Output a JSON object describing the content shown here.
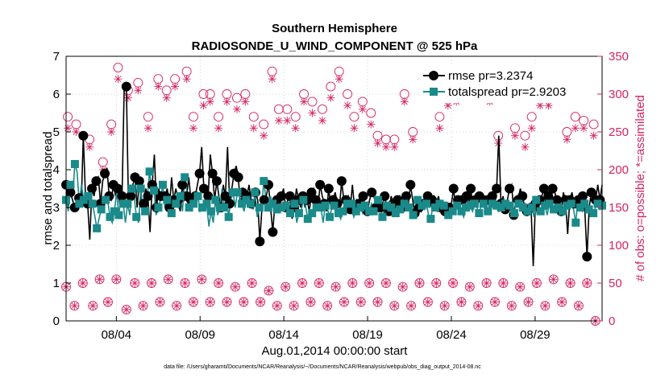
{
  "chart_data": {
    "type": "line",
    "title": "Southern Hemisphere",
    "subtitle": "RADIOSONDE_U_WIND_COMPONENT @ 525 hPa",
    "xlabel": "Aug.01,2014 00:00:00 start",
    "ylabel": "rmse and totalspread",
    "ylabel_right": "# of obs: o=possible; *=assimilated",
    "footer": "data file: /Users/gharamti/Documents/NCAR/Reanalysis/~/Documents/NCAR/Reanalysis/webpub/obs_diag_output_2014-08.nc",
    "xlim": [
      1,
      33
    ],
    "ylim": [
      0,
      7
    ],
    "ylim_right": [
      0,
      350
    ],
    "x_ticks": [
      4,
      9,
      14,
      19,
      24,
      29
    ],
    "x_tick_labels": [
      "08/04",
      "08/09",
      "08/14",
      "08/19",
      "08/24",
      "08/29"
    ],
    "y_ticks": [
      0,
      1,
      2,
      3,
      4,
      5,
      6,
      7
    ],
    "y_ticks_right": [
      0,
      50,
      100,
      150,
      200,
      250,
      300,
      350
    ],
    "grid": true,
    "legend_position": "top-right",
    "colors": {
      "rmse": "#000000",
      "totalspread": "#1a8a8a",
      "obs": "#d6235f"
    },
    "series": [
      {
        "name": "rmse pr=3.2374",
        "axis": "left",
        "marker": "circle",
        "values": [
          3.6,
          3.05,
          3.4,
          3.2,
          3.0,
          2.95,
          3.25,
          3.0,
          4.9,
          3.3,
          3.1,
          2.15,
          3.5,
          3.3,
          3.7,
          3.8,
          3.1,
          3.7,
          3.9,
          4.05,
          3.3,
          3.2,
          3.6,
          3.3,
          3.5,
          3.05,
          3.3,
          6.2,
          6.2,
          3.0,
          3.3,
          3.6,
          3.8,
          3.0,
          3.7,
          3.2,
          3.1,
          3.5,
          3.3,
          2.35,
          3.6,
          4.4,
          3.0,
          3.5,
          3.3,
          3.2,
          3.3,
          3.5,
          3.0,
          3.8,
          3.2,
          3.5,
          3.2,
          2.9,
          3.6,
          3.2,
          3.3,
          3.8,
          3.2,
          3.1,
          3.3,
          3.6,
          3.9,
          4.6,
          3.5,
          3.3,
          3.3,
          4.4,
          3.9,
          3.2,
          3.7,
          3.3,
          3.0,
          3.6,
          3.3,
          4.6,
          3.1,
          3.5,
          3.9,
          4.1,
          3.8,
          3.0,
          3.4,
          3.2,
          3.3,
          3.6,
          3.1,
          3.0,
          3.4,
          3.2,
          2.1,
          3.0,
          3.2,
          3.3,
          3.6,
          3.0,
          2.35,
          3.1,
          3.2,
          2.9,
          3.3,
          3.5,
          3.0,
          3.2,
          3.3,
          2.7,
          3.0,
          3.5,
          3.2,
          3.0,
          3.3,
          3.0,
          3.2,
          2.9,
          3.4,
          3.5,
          3.2,
          3.0,
          3.6,
          3.3,
          3.1,
          2.9,
          3.5,
          3.0,
          3.2,
          3.4,
          3.1,
          3.0,
          3.7,
          3.2,
          3.2,
          3.3,
          2.95,
          3.6,
          3.0,
          3.2,
          3.1,
          2.95,
          3.3,
          3.0,
          2.9,
          3.2,
          3.4,
          3.3,
          3.0,
          2.9,
          3.0,
          3.1,
          3.3,
          3.0,
          2.9,
          3.3,
          3.1,
          3.0,
          3.2,
          3.3,
          3.0,
          3.3,
          3.3,
          3.1,
          3.6,
          3.2,
          2.85,
          3.2,
          3.0,
          2.9,
          3.1,
          3.2,
          3.3,
          3.0,
          3.2,
          3.3,
          3.1,
          3.3,
          3.0,
          3.2,
          2.9,
          2.95,
          3.0,
          3.1,
          3.5,
          2.95,
          3.2,
          3.1,
          3.2,
          3.1,
          3.3,
          3.0,
          3.5,
          2.95,
          3.2,
          3.0,
          3.3,
          3.1,
          3.2,
          3.1,
          3.2,
          3.2,
          3.3,
          3.5,
          3.5,
          4.9,
          3.1,
          3.3,
          2.95,
          3.2,
          3.5,
          3.6,
          2.8,
          3.2,
          3.2,
          3.5,
          3.3,
          3.0,
          2.9,
          2.95,
          3.0,
          1.45,
          3.1,
          2.8,
          3.2,
          3.3,
          3.5,
          3.0,
          3.3,
          3.0,
          3.5,
          3.4,
          3.2,
          3.2,
          2.9,
          3.4,
          3.2,
          2.3,
          3.2,
          3.4,
          3.1,
          3.0,
          3.2,
          3.1,
          3.3,
          2.9,
          1.7,
          3.0,
          3.4,
          3.3,
          3.2,
          3.6,
          3.2,
          3.6
        ],
        "values_shown": "every 2nd sample drawn as marker"
      },
      {
        "name": "totalspread pr=2.9203",
        "axis": "left",
        "marker": "square",
        "values": [
          3.2,
          2.9,
          3.6,
          3.3,
          4.15,
          3.95,
          3.1,
          3.6,
          3.2,
          3.0,
          3.3,
          3.35,
          3.1,
          2.8,
          2.45,
          2.7,
          2.95,
          3.1,
          3.2,
          3.15,
          2.75,
          2.6,
          2.9,
          3.4,
          2.8,
          3.3,
          3.1,
          2.6,
          3.1,
          2.8,
          3.5,
          3.3,
          2.75,
          2.6,
          3.5,
          2.9,
          2.9,
          3.3,
          3.95,
          3.4,
          3.45,
          2.8,
          3.0,
          3.2,
          3.6,
          3.0,
          3.2,
          2.9,
          2.85,
          3.35,
          3.1,
          3.0,
          3.3,
          2.9,
          3.8,
          3.4,
          3.0,
          2.95,
          3.1,
          3.1,
          3.3,
          2.9,
          3.0,
          3.0,
          3.1,
          2.5,
          2.9,
          2.6,
          3.2,
          2.8,
          3.0,
          3.5,
          3.0,
          3.3,
          2.75,
          3.2,
          3.4,
          3.0,
          3.4,
          3.3,
          3.1,
          2.9,
          3.2,
          3.3,
          3.1,
          2.95,
          3.4,
          2.75,
          3.0,
          3.0,
          3.7,
          3.2,
          3.0,
          3.3,
          3.1,
          2.85,
          2.95,
          3.15,
          3.0,
          3.05,
          3.05,
          3.1,
          2.85,
          3.0,
          3.1,
          2.6,
          2.85,
          2.9,
          3.2,
          3.05,
          2.7,
          2.95,
          2.85,
          3.1,
          3.0,
          3.1,
          3.0,
          2.6,
          3.05,
          2.95,
          2.75,
          3.0,
          3.05,
          3.1,
          2.85,
          2.7,
          2.9,
          3.05,
          3.1,
          3.0,
          3.1,
          2.75,
          2.9,
          3.05,
          3.0,
          2.85,
          3.05,
          3.0,
          2.9,
          3.1,
          2.9,
          2.9,
          3.2,
          3.0,
          2.75,
          3.0,
          3.05,
          3.1,
          3.0,
          2.9,
          2.85,
          3.0,
          2.95,
          3.0,
          3.1,
          3.1,
          3.0,
          3.05,
          2.8,
          2.9,
          3.2,
          3.0,
          3.05,
          2.95,
          3.1,
          2.8,
          2.7,
          3.05,
          3.0,
          2.9,
          3.1,
          3.0,
          3.05,
          2.95,
          2.8,
          3.0,
          2.9,
          3.2,
          3.05,
          3.1,
          2.9,
          2.75,
          3.0,
          3.2,
          3.05,
          2.9,
          3.1,
          3.0,
          2.85,
          3.05,
          3.1,
          3.0,
          2.9,
          3.2,
          3.1,
          3.4,
          3.05,
          2.9,
          3.0,
          3.2,
          3.1,
          2.9,
          3.05,
          3.0,
          2.85,
          3.2,
          3.1,
          2.95,
          3.0,
          3.1,
          2.9,
          3.05,
          3.0,
          2.75,
          3.2,
          3.1,
          2.9,
          3.0,
          3.05,
          2.8,
          3.1,
          3.0,
          2.95,
          3.2,
          3.0,
          3.1,
          2.9,
          2.85,
          3.05,
          3.0,
          3.1,
          2.95,
          2.6,
          3.2,
          3.0,
          2.9,
          3.1,
          3.05,
          2.95,
          3.0,
          2.85,
          3.0,
          3.1,
          2.95,
          3.05
        ],
        "values_shown": "every 2nd sample drawn as marker"
      },
      {
        "name": "possible (high)",
        "axis": "right",
        "marker": "o",
        "x": [
          1.1,
          1.6,
          2.4,
          3.2,
          3.7,
          4.1,
          4.7,
          5.3,
          5.9,
          6.5,
          7.0,
          7.5,
          8.2,
          8.6,
          9.2,
          9.6,
          10.1,
          10.6,
          11.2,
          11.7,
          12.2,
          12.8,
          13.3,
          13.7,
          14.2,
          14.7,
          15.2,
          15.7,
          16.3,
          16.8,
          17.3,
          17.8,
          18.2,
          18.7,
          19.2,
          19.6,
          20.1,
          20.6,
          21.2,
          21.7,
          22.3,
          22.8,
          23.3,
          23.8,
          24.3,
          24.8,
          25.3,
          25.8,
          26.3,
          26.8,
          27.3,
          27.8,
          28.4,
          28.8,
          29.3,
          29.8,
          30.4,
          30.9,
          31.4,
          31.9,
          32.5
        ],
        "values": [
          270,
          260,
          240,
          210,
          260,
          335,
          305,
          315,
          270,
          320,
          305,
          320,
          330,
          270,
          300,
          300,
          270,
          300,
          295,
          300,
          270,
          260,
          330,
          280,
          280,
          270,
          300,
          290,
          280,
          310,
          330,
          300,
          270,
          290,
          275,
          245,
          240,
          240,
          300,
          250,
          320,
          315,
          270,
          300,
          300,
          305,
          310,
          310,
          300,
          245,
          320,
          255,
          245,
          270,
          300,
          300,
          320,
          250,
          270,
          265,
          260
        ]
      },
      {
        "name": "assimilated (high)",
        "axis": "right",
        "marker": "*",
        "x": [
          1.1,
          1.6,
          2.4,
          3.2,
          3.7,
          4.1,
          4.7,
          5.3,
          5.9,
          6.5,
          7.0,
          7.5,
          8.2,
          8.6,
          9.2,
          9.6,
          10.1,
          10.6,
          11.2,
          11.7,
          12.2,
          12.8,
          13.3,
          13.7,
          14.2,
          14.7,
          15.2,
          15.7,
          16.3,
          16.8,
          17.3,
          17.8,
          18.2,
          18.7,
          19.2,
          19.6,
          20.1,
          20.6,
          21.2,
          21.7,
          22.3,
          22.8,
          23.3,
          23.8,
          24.3,
          24.8,
          25.3,
          25.8,
          26.3,
          26.8,
          27.3,
          27.8,
          28.4,
          28.8,
          29.3,
          29.8,
          30.4,
          30.9,
          31.4,
          31.9,
          32.5
        ],
        "values": [
          255,
          250,
          230,
          200,
          250,
          320,
          295,
          305,
          255,
          310,
          295,
          310,
          320,
          255,
          285,
          290,
          255,
          290,
          280,
          290,
          255,
          245,
          320,
          265,
          265,
          255,
          290,
          275,
          265,
          295,
          320,
          285,
          255,
          280,
          260,
          235,
          230,
          230,
          290,
          240,
          305,
          300,
          255,
          285,
          290,
          295,
          300,
          295,
          290,
          235,
          305,
          245,
          230,
          255,
          285,
          285,
          305,
          240,
          255,
          255,
          245
        ]
      },
      {
        "name": "possible (low)",
        "axis": "right",
        "marker": "o",
        "x": [
          1.0,
          1.5,
          2.0,
          2.6,
          3.0,
          3.5,
          4.0,
          4.6,
          5.1,
          5.6,
          6.1,
          6.6,
          7.1,
          7.6,
          8.1,
          8.6,
          9.1,
          9.6,
          10.1,
          10.6,
          11.1,
          11.6,
          12.1,
          12.6,
          13.1,
          13.6,
          14.1,
          14.6,
          15.1,
          15.6,
          16.1,
          16.6,
          17.1,
          17.6,
          18.1,
          18.6,
          19.1,
          19.6,
          20.1,
          20.6,
          21.1,
          21.6,
          22.1,
          22.6,
          23.1,
          23.6,
          24.1,
          24.6,
          25.1,
          25.6,
          26.1,
          26.6,
          27.1,
          27.6,
          28.1,
          28.6,
          29.1,
          29.6,
          30.1,
          30.6,
          31.1,
          31.6,
          32.1,
          32.6
        ],
        "values": [
          45,
          20,
          50,
          20,
          55,
          25,
          55,
          15,
          50,
          20,
          50,
          25,
          55,
          20,
          50,
          25,
          55,
          25,
          50,
          25,
          45,
          25,
          50,
          25,
          40,
          20,
          45,
          20,
          50,
          25,
          50,
          20,
          45,
          25,
          50,
          25,
          50,
          25,
          50,
          20,
          45,
          20,
          50,
          25,
          50,
          20,
          50,
          25,
          45,
          20,
          50,
          25,
          50,
          20,
          45,
          25,
          50,
          20,
          55,
          25,
          50,
          20,
          50,
          0
        ]
      },
      {
        "name": "assimilated (low)",
        "axis": "right",
        "marker": "*",
        "x": [
          1.0,
          1.5,
          2.0,
          2.6,
          3.0,
          3.5,
          4.0,
          4.6,
          5.1,
          5.6,
          6.1,
          6.6,
          7.1,
          7.6,
          8.1,
          8.6,
          9.1,
          9.6,
          10.1,
          10.6,
          11.1,
          11.6,
          12.1,
          12.6,
          13.1,
          13.6,
          14.1,
          14.6,
          15.1,
          15.6,
          16.1,
          16.6,
          17.1,
          17.6,
          18.1,
          18.6,
          19.1,
          19.6,
          20.1,
          20.6,
          21.1,
          21.6,
          22.1,
          22.6,
          23.1,
          23.6,
          24.1,
          24.6,
          25.1,
          25.6,
          26.1,
          26.6,
          27.1,
          27.6,
          28.1,
          28.6,
          29.1,
          29.6,
          30.1,
          30.6,
          31.1,
          31.6,
          32.1,
          32.6
        ],
        "values": [
          45,
          20,
          50,
          20,
          55,
          25,
          55,
          15,
          50,
          20,
          50,
          25,
          55,
          20,
          50,
          25,
          55,
          25,
          50,
          25,
          45,
          25,
          50,
          25,
          40,
          20,
          45,
          20,
          50,
          25,
          50,
          20,
          45,
          25,
          50,
          25,
          50,
          25,
          50,
          20,
          45,
          20,
          50,
          25,
          50,
          20,
          50,
          25,
          45,
          20,
          50,
          25,
          50,
          20,
          45,
          25,
          50,
          20,
          55,
          25,
          50,
          20,
          50,
          0
        ]
      }
    ]
  }
}
